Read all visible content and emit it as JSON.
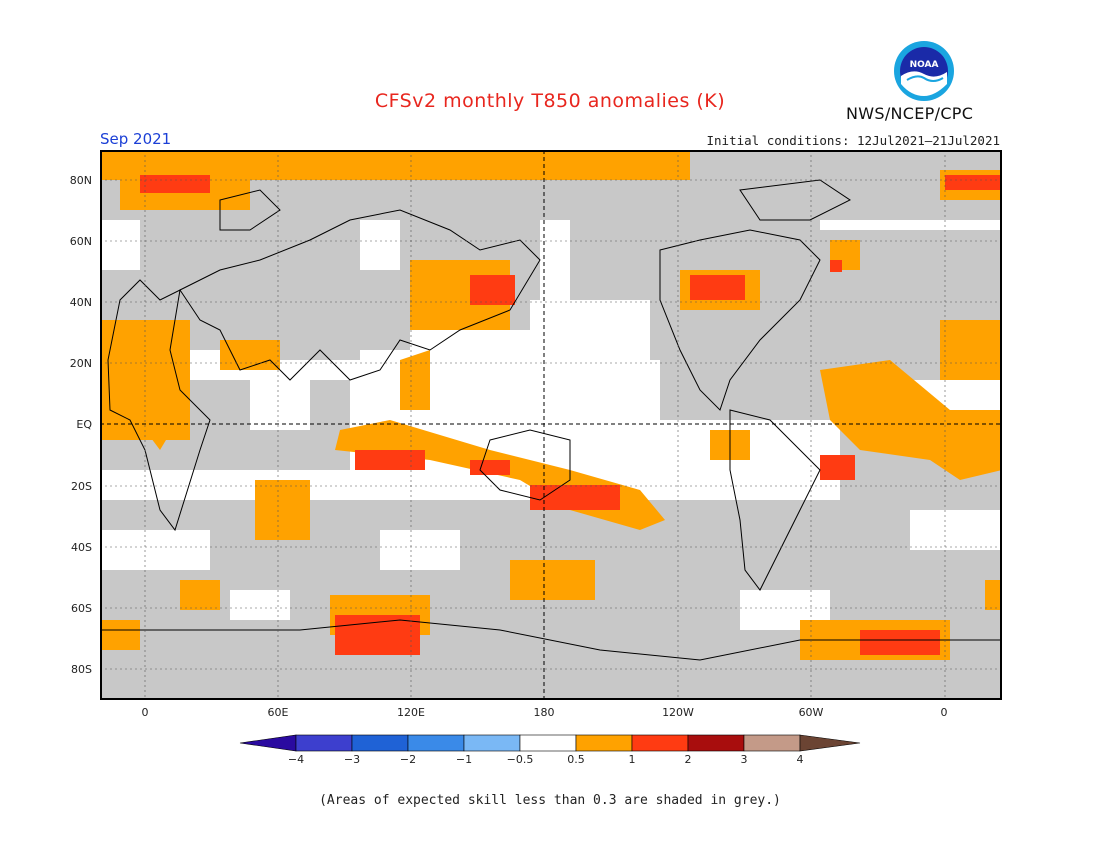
{
  "title": "CFSv2 monthly T850 anomalies (K)",
  "agency": "NWS/NCEP/CPC",
  "logo_text": "NOAA",
  "month": "Sep 2021",
  "initial_conditions": "Initial conditions: 12Jul2021–21Jul2021",
  "y_axis_labels": [
    "80N",
    "60N",
    "40N",
    "20N",
    "EQ",
    "20S",
    "40S",
    "60S",
    "80S"
  ],
  "x_axis_labels": [
    "0",
    "60E",
    "120E",
    "180",
    "120W",
    "60W",
    "0"
  ],
  "colorbar": {
    "labels": [
      "−4",
      "−3",
      "−2",
      "−1",
      "−0.5",
      "0.5",
      "1",
      "2",
      "3",
      "4"
    ],
    "colors": [
      "#2a0aa0",
      "#3d3fce",
      "#1f62d6",
      "#3a8ae8",
      "#7ab8f5",
      "#ffffff",
      "#ffa200",
      "#ff3b12",
      "#a80d0d",
      "#c49a88",
      "#6b4433"
    ]
  },
  "map_colors": {
    "grey": "#c8c8c8",
    "weak_warm": "#ffa200",
    "strong_warm": "#ff3b12",
    "neutral": "#ffffff"
  },
  "note": "(Areas of expected skill less than 0.3 are shaded in grey.)"
}
